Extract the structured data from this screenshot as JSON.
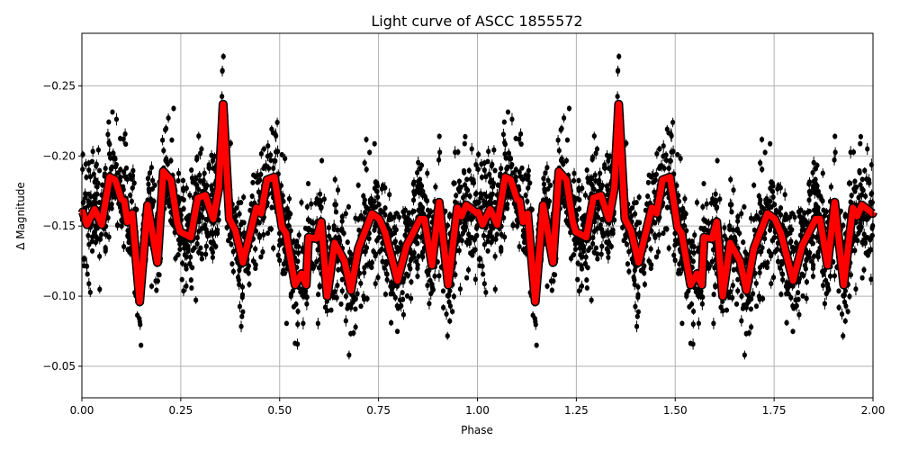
{
  "chart_data": {
    "type": "scatter",
    "title": "Light curve of ASCC 1855572",
    "xlabel": "Phase",
    "ylabel": "Δ Magnitude",
    "xlim": [
      0,
      2
    ],
    "ylim": [
      -0.2875,
      -0.0275
    ],
    "y_inverted": true,
    "grid": true,
    "x_ticks": [
      "0.00",
      "0.25",
      "0.50",
      "0.75",
      "1.00",
      "1.25",
      "1.50",
      "1.75",
      "2.00"
    ],
    "x_tick_values": [
      0,
      0.25,
      0.5,
      0.75,
      1,
      1.25,
      1.5,
      1.75,
      2
    ],
    "y_ticks": [
      "−0.25",
      "−0.20",
      "−0.15",
      "−0.10",
      "−0.05"
    ],
    "y_tick_values": [
      -0.25,
      -0.2,
      -0.15,
      -0.1,
      -0.05
    ],
    "scatter_color": "#000000",
    "scatter_has_error_bars": true,
    "model_curve": {
      "color": "#ff0000",
      "outline_color": "#000000",
      "period_in_phase": 1,
      "phase": [
        0.002,
        0.013,
        0.032,
        0.05,
        0.07,
        0.084,
        0.1,
        0.107,
        0.115,
        0.127,
        0.146,
        0.166,
        0.191,
        0.206,
        0.225,
        0.241,
        0.248,
        0.275,
        0.293,
        0.312,
        0.332,
        0.346,
        0.357,
        0.373,
        0.388,
        0.407,
        0.441,
        0.453,
        0.468,
        0.487,
        0.506,
        0.516,
        0.539,
        0.555,
        0.567,
        0.573,
        0.593,
        0.605,
        0.62,
        0.639,
        0.664,
        0.68,
        0.699,
        0.733,
        0.752,
        0.767,
        0.798,
        0.821,
        0.855,
        0.866,
        0.885,
        0.903,
        0.926,
        0.949,
        0.96,
        0.972,
        0.999
      ],
      "magnitude": [
        -0.16,
        -0.151,
        -0.162,
        -0.151,
        -0.185,
        -0.183,
        -0.169,
        -0.168,
        -0.153,
        -0.159,
        -0.096,
        -0.165,
        -0.124,
        -0.189,
        -0.183,
        -0.153,
        -0.146,
        -0.142,
        -0.17,
        -0.172,
        -0.155,
        -0.177,
        -0.237,
        -0.155,
        -0.147,
        -0.124,
        -0.163,
        -0.159,
        -0.183,
        -0.185,
        -0.149,
        -0.145,
        -0.108,
        -0.116,
        -0.108,
        -0.142,
        -0.141,
        -0.153,
        -0.1,
        -0.138,
        -0.125,
        -0.104,
        -0.134,
        -0.159,
        -0.155,
        -0.145,
        -0.111,
        -0.136,
        -0.155,
        -0.155,
        -0.122,
        -0.167,
        -0.108,
        -0.163,
        -0.157,
        -0.165,
        -0.159
      ]
    }
  }
}
